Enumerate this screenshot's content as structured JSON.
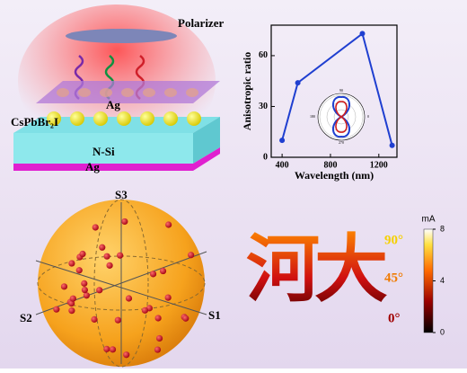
{
  "schematic": {
    "polarizer": "Polarizer",
    "top_electrode": "Ag",
    "perovskite": "CsPbBr₂I",
    "substrate": "N-Si",
    "bottom_electrode": "Ag"
  },
  "chart_data": {
    "type": "line",
    "x_label": "Wavelength (nm)",
    "y_label": "Anisotropic ratio",
    "x": [
      400,
      530,
      1064,
      1310
    ],
    "values": [
      10,
      44,
      73,
      7
    ],
    "color": "#1f3fd0",
    "xlim": [
      310,
      1350
    ],
    "xticks": [
      400,
      800,
      1200
    ],
    "ylim": [
      0,
      78
    ],
    "yticks": [
      0,
      30,
      60
    ]
  },
  "inset": {
    "angle_labels": [
      "90",
      "0",
      "270",
      "180"
    ]
  },
  "poincare": {
    "axes": [
      "S3",
      "S2",
      "S1"
    ]
  },
  "logo": {
    "text": "河大",
    "angle_labels": [
      "90°",
      "45°",
      "0°"
    ]
  },
  "colorbar": {
    "unit": "mA",
    "lim": [
      0,
      8
    ],
    "ticks": [
      0,
      4,
      8
    ]
  }
}
